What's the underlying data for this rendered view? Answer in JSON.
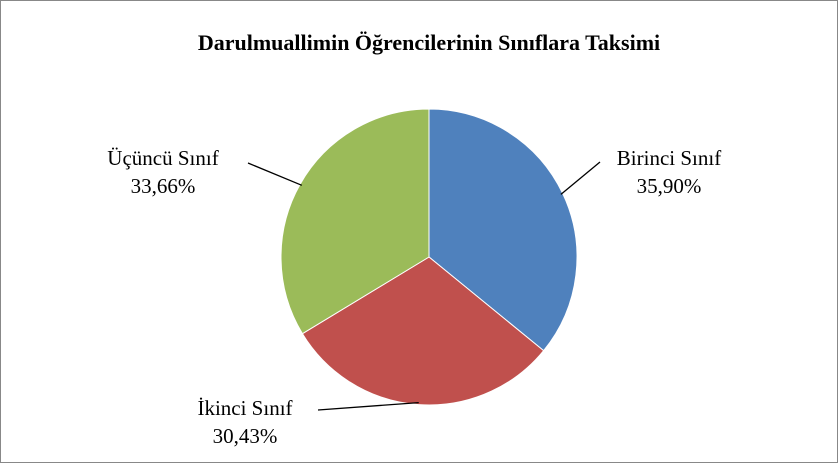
{
  "chart_data": {
    "type": "pie",
    "title": "Darulmuallimin Öğrencilerinin Sınıflara Taksimi",
    "categories": [
      "Birinci Sınıf",
      "İkinci Sınıf",
      "Üçüncü Sınıf"
    ],
    "values": [
      35.9,
      30.43,
      33.66
    ],
    "value_labels": [
      "35,90%",
      "30,43%",
      "33,66%"
    ],
    "colors": [
      "#4f81bd",
      "#c0504d",
      "#9bbb59"
    ]
  }
}
